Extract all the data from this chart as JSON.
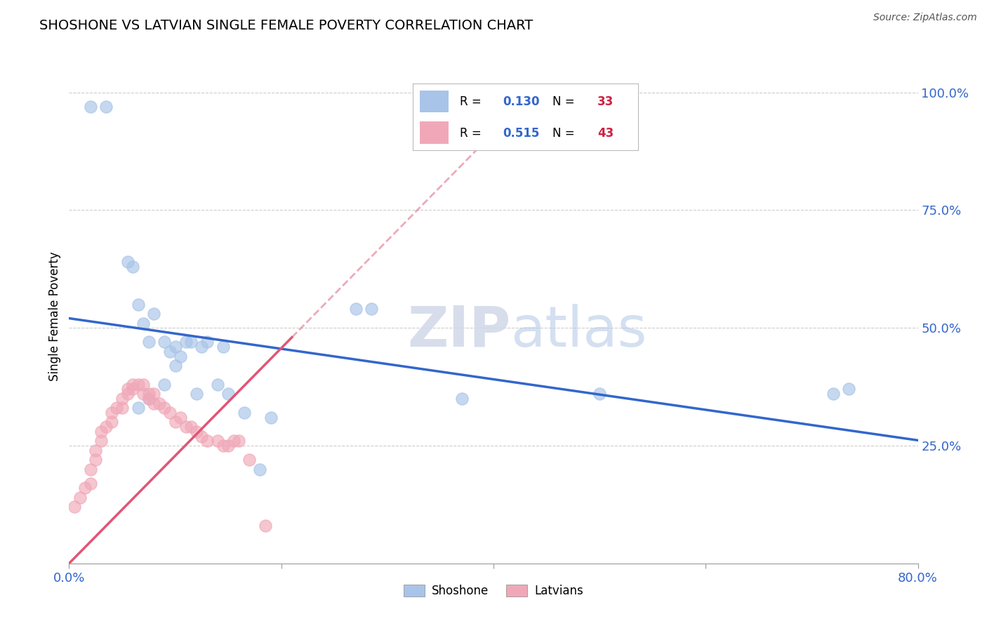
{
  "title": "SHOSHONE VS LATVIAN SINGLE FEMALE POVERTY CORRELATION CHART",
  "source": "Source: ZipAtlas.com",
  "ylabel": "Single Female Poverty",
  "xlim": [
    0.0,
    0.8
  ],
  "ylim": [
    0.0,
    1.05
  ],
  "grid_color": "#cccccc",
  "watermark_text": "ZIPatlas",
  "shoshone_color": "#a8c4e8",
  "latvian_color": "#f0a8b8",
  "shoshone_R": 0.13,
  "shoshone_N": 33,
  "latvian_R": 0.515,
  "latvian_N": 43,
  "legend_label_shoshone": "Shoshone",
  "legend_label_latvian": "Latvians",
  "shoshone_line_color": "#3366cc",
  "latvian_line_color": "#e05575",
  "shoshone_x": [
    0.02,
    0.035,
    0.055,
    0.06,
    0.065,
    0.07,
    0.075,
    0.08,
    0.09,
    0.095,
    0.1,
    0.105,
    0.11,
    0.115,
    0.125,
    0.13,
    0.145,
    0.27,
    0.285,
    0.37,
    0.5,
    0.72,
    0.735,
    0.065,
    0.075,
    0.09,
    0.1,
    0.12,
    0.14,
    0.15,
    0.165,
    0.18,
    0.19
  ],
  "shoshone_y": [
    0.97,
    0.97,
    0.64,
    0.63,
    0.55,
    0.51,
    0.47,
    0.53,
    0.47,
    0.45,
    0.46,
    0.44,
    0.47,
    0.47,
    0.46,
    0.47,
    0.46,
    0.54,
    0.54,
    0.35,
    0.36,
    0.36,
    0.37,
    0.33,
    0.35,
    0.38,
    0.42,
    0.36,
    0.38,
    0.36,
    0.32,
    0.2,
    0.31
  ],
  "latvian_x": [
    0.005,
    0.01,
    0.015,
    0.02,
    0.02,
    0.025,
    0.025,
    0.03,
    0.03,
    0.035,
    0.04,
    0.04,
    0.045,
    0.05,
    0.05,
    0.055,
    0.055,
    0.06,
    0.06,
    0.065,
    0.07,
    0.07,
    0.075,
    0.075,
    0.08,
    0.08,
    0.085,
    0.09,
    0.095,
    0.1,
    0.105,
    0.11,
    0.115,
    0.12,
    0.125,
    0.13,
    0.14,
    0.145,
    0.15,
    0.155,
    0.16,
    0.17,
    0.185
  ],
  "latvian_y": [
    0.12,
    0.14,
    0.16,
    0.17,
    0.2,
    0.22,
    0.24,
    0.26,
    0.28,
    0.29,
    0.3,
    0.32,
    0.33,
    0.33,
    0.35,
    0.36,
    0.37,
    0.37,
    0.38,
    0.38,
    0.36,
    0.38,
    0.35,
    0.36,
    0.34,
    0.36,
    0.34,
    0.33,
    0.32,
    0.3,
    0.31,
    0.29,
    0.29,
    0.28,
    0.27,
    0.26,
    0.26,
    0.25,
    0.25,
    0.26,
    0.26,
    0.22,
    0.08
  ]
}
